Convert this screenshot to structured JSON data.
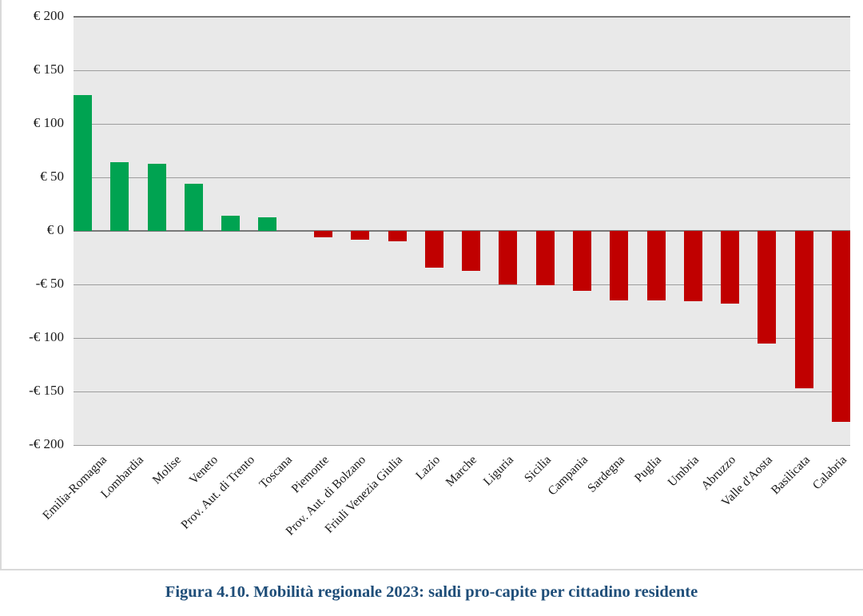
{
  "figure": {
    "caption": "Figura 4.10. Mobilità regionale 2023: saldi pro-capite per cittadino residente"
  },
  "chart_data": {
    "type": "bar",
    "title": "Figura 4.10. Mobilità regionale 2023: saldi pro-capite per cittadino residente",
    "xlabel": "",
    "ylabel": "",
    "ylim": [
      -200,
      200
    ],
    "y_tick_step": 50,
    "y_tick_labels": [
      "€ 200",
      "€ 150",
      "€ 100",
      "€ 50",
      "€ 0",
      "-€ 50",
      "-€ 100",
      "-€ 150",
      "-€ 200"
    ],
    "grid": true,
    "legend": "none",
    "plot_background": "#e9e9e9",
    "positive_color": "#00a351",
    "negative_color": "#c00000",
    "categories": [
      "Emilia-Romagna",
      "Lombardia",
      "Molise",
      "Veneto",
      "Prov. Aut. di Trento",
      "Toscana",
      "Piemonte",
      "Prov. Aut. di Bolzano",
      "Friuli Venezia Giulia",
      "Lazio",
      "Marche",
      "Liguria",
      "Sicilia",
      "Campania",
      "Sardegna",
      "Puglia",
      "Umbria",
      "Abruzzo",
      "Valle d'Aosta",
      "Basilicata",
      "Calabria"
    ],
    "values": [
      127,
      64,
      63,
      44,
      14,
      13,
      -6,
      -8,
      -10,
      -34,
      -37,
      -50,
      -51,
      -56,
      -65,
      -65,
      -66,
      -68,
      -105,
      -147,
      -178
    ]
  }
}
